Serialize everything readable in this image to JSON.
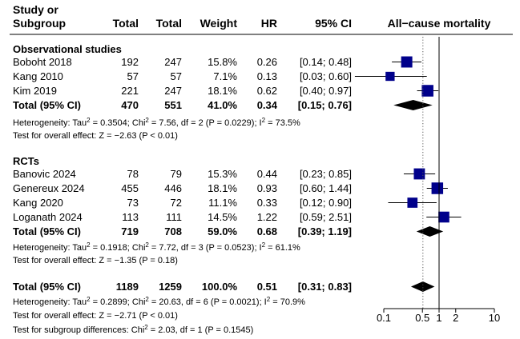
{
  "headers": {
    "study_line1": "Study or",
    "study_line2": "Subgroup",
    "total1": "Total",
    "total2": "Total",
    "weight": "Weight",
    "hr": "HR",
    "ci": "95% CI",
    "outcome": "All−cause mortality"
  },
  "chart_data": {
    "type": "forest",
    "scale": "log",
    "x_ticks": [
      {
        "value": 0.1,
        "label": "0.1"
      },
      {
        "value": 0.5,
        "label": "0.5"
      },
      {
        "value": 1,
        "label": "1"
      },
      {
        "value": 2,
        "label": "2"
      },
      {
        "value": 10,
        "label": "10"
      }
    ],
    "reference_line": 1,
    "overall_dotted_line": 0.51,
    "groups": [
      {
        "name": "Observational studies",
        "studies": [
          {
            "name": "Boboht 2018",
            "total1": "192",
            "total2": "247",
            "weight": "15.8%",
            "hr_text": "0.26",
            "ci_text": "[0.14; 0.48]",
            "hr": 0.26,
            "lo": 0.14,
            "hi": 0.48,
            "w": 15.8
          },
          {
            "name": "Kang 2010",
            "total1": "57",
            "total2": "57",
            "weight": "7.1%",
            "hr_text": "0.13",
            "ci_text": "[0.03; 0.60]",
            "hr": 0.13,
            "lo": 0.03,
            "hi": 0.6,
            "w": 7.1
          },
          {
            "name": "Kim 2019",
            "total1": "221",
            "total2": "247",
            "weight": "18.1%",
            "hr_text": "0.62",
            "ci_text": "[0.40; 0.97]",
            "hr": 0.62,
            "lo": 0.4,
            "hi": 0.97,
            "w": 18.1
          }
        ],
        "total": {
          "name": "Total (95% CI)",
          "total1": "470",
          "total2": "551",
          "weight": "41.0%",
          "hr_text": "0.34",
          "ci_text": "[0.15; 0.76]",
          "hr": 0.34,
          "lo": 0.15,
          "hi": 0.76
        },
        "heterogeneity": {
          "prefix": "Heterogeneity: Tau",
          "tau2": "= 0.3504; Chi",
          "chi2": "= 7.56, df = 2 (P = 0.0229); I",
          "i2": "= 73.5%"
        },
        "overall_effect": "Test for overall effect: Z = −2.63 (P < 0.01)"
      },
      {
        "name": "RCTs",
        "studies": [
          {
            "name": "Banovic 2024",
            "total1": "78",
            "total2": "79",
            "weight": "15.3%",
            "hr_text": "0.44",
            "ci_text": "[0.23; 0.85]",
            "hr": 0.44,
            "lo": 0.23,
            "hi": 0.85,
            "w": 15.3
          },
          {
            "name": "Genereux 2024",
            "total1": "455",
            "total2": "446",
            "weight": "18.1%",
            "hr_text": "0.93",
            "ci_text": "[0.60; 1.44]",
            "hr": 0.93,
            "lo": 0.6,
            "hi": 1.44,
            "w": 18.1
          },
          {
            "name": "Kang 2020",
            "total1": "73",
            "total2": "72",
            "weight": "11.1%",
            "hr_text": "0.33",
            "ci_text": "[0.12; 0.90]",
            "hr": 0.33,
            "lo": 0.12,
            "hi": 0.9,
            "w": 11.1
          },
          {
            "name": "Loganath 2024",
            "total1": "113",
            "total2": "111",
            "weight": "14.5%",
            "hr_text": "1.22",
            "ci_text": "[0.59; 2.51]",
            "hr": 1.22,
            "lo": 0.59,
            "hi": 2.51,
            "w": 14.5
          }
        ],
        "total": {
          "name": "Total (95% CI)",
          "total1": "719",
          "total2": "708",
          "weight": "59.0%",
          "hr_text": "0.68",
          "ci_text": "[0.39; 1.19]",
          "hr": 0.68,
          "lo": 0.39,
          "hi": 1.19
        },
        "heterogeneity": {
          "prefix": "Heterogeneity: Tau",
          "tau2": "= 0.1918; Chi",
          "chi2": "= 7.72, df = 3 (P = 0.0523); I",
          "i2": "= 61.1%"
        },
        "overall_effect": "Test for overall effect: Z = −1.35 (P = 0.18)"
      }
    ],
    "overall": {
      "total": {
        "name": "Total (95% CI)",
        "total1": "1189",
        "total2": "1259",
        "weight": "100.0%",
        "hr_text": "0.51",
        "ci_text": "[0.31; 0.83]",
        "hr": 0.51,
        "lo": 0.31,
        "hi": 0.83
      },
      "heterogeneity": {
        "prefix": "Heterogeneity: Tau",
        "tau2": "= 0.2899; Chi",
        "chi2": "= 20.63, df = 6 (P = 0.0021); I",
        "i2": "= 70.9%"
      },
      "overall_effect": "Test for overall effect: Z = −2.71 (P < 0.01)",
      "subgroup_test": {
        "prefix": "Test for subgroup differences: Chi",
        "rest": "= 2.03, df = 1 (P = 0.1545)"
      }
    },
    "colors": {
      "square": "#00008b",
      "diamond": "#000000",
      "line": "#000000"
    }
  }
}
